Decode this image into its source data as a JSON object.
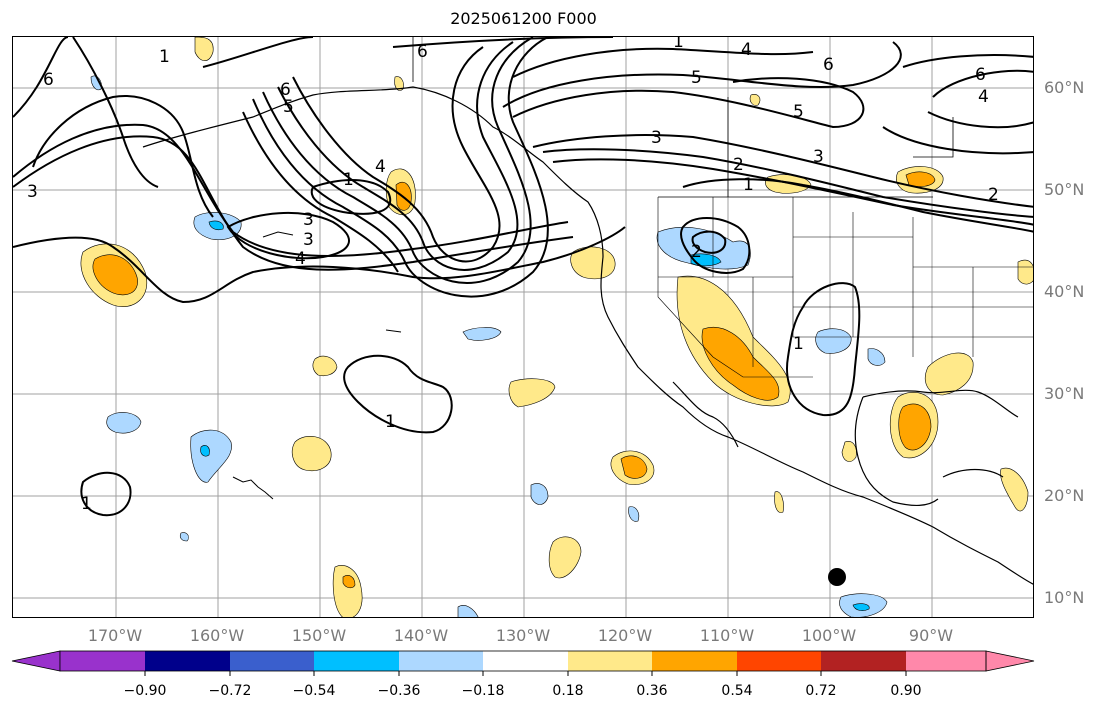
{
  "title": "2025061200 F000",
  "map": {
    "longitude_labels": [
      "170°W",
      "160°W",
      "150°W",
      "140°W",
      "130°W",
      "120°W",
      "110°W",
      "100°W",
      "90°W"
    ],
    "latitude_labels": [
      "60°N",
      "50°N",
      "40°N",
      "30°N",
      "20°N",
      "10°N"
    ],
    "contour_labels": [
      "6",
      "1",
      "3",
      "6",
      "5",
      "6",
      "4",
      "3",
      "3",
      "1",
      "4",
      "1",
      "3",
      "4",
      "2",
      "1",
      "2",
      "1",
      "1",
      "1",
      "5",
      "6",
      "5",
      "4",
      "6",
      "2",
      "3"
    ],
    "contour_color": "#000000",
    "coastline_color": "#000000",
    "gridline_color": "#a0a0a0",
    "marker": "filled-black-circle"
  },
  "colorbar": {
    "tick_labels": [
      "−0.90",
      "−0.72",
      "−0.54",
      "−0.36",
      "−0.18",
      "0.18",
      "0.36",
      "0.54",
      "0.72",
      "0.90"
    ],
    "colors": [
      "#9932cc",
      "#00008b",
      "#3a5fcd",
      "#00bfff",
      "#add8ff",
      "#ffffff",
      "#ffe98a",
      "#ffa500",
      "#ff4500",
      "#b22222",
      "#ff88aa"
    ]
  }
}
